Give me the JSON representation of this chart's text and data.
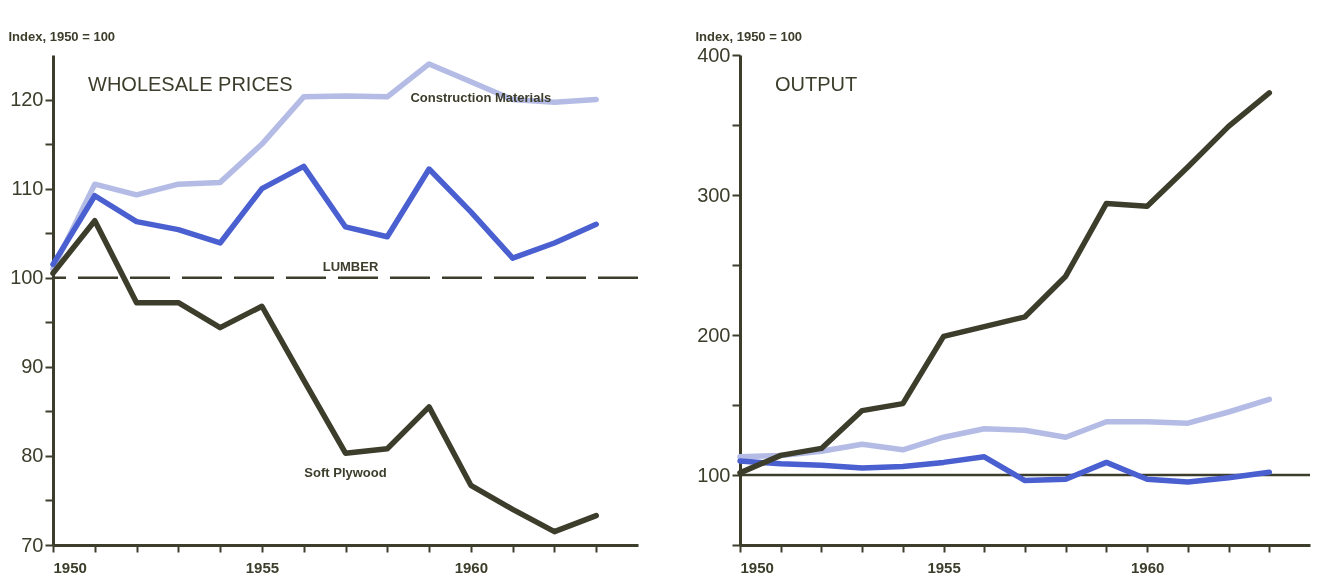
{
  "chart_data": [
    {
      "type": "line",
      "title": "WHOLESALE PRICES",
      "ylabel": "Index, 1950 = 100",
      "x": [
        1950,
        1951,
        1952,
        1953,
        1954,
        1955,
        1956,
        1957,
        1958,
        1959,
        1960,
        1961,
        1962,
        1963
      ],
      "series": [
        {
          "name": "Construction Materials",
          "color": "#b4bce6",
          "values": [
            101,
            110.5,
            109.3,
            110.5,
            110.7,
            115,
            120.3,
            120.4,
            120.3,
            124,
            122,
            120,
            119.7,
            120
          ]
        },
        {
          "name": "LUMBER",
          "color": "#4a5fd0",
          "values": [
            101.5,
            109.2,
            106.3,
            105.4,
            103.9,
            110,
            112.5,
            105.7,
            104.6,
            112.2,
            107.4,
            102.2,
            103.9,
            106
          ]
        },
        {
          "name": "Soft Plywood",
          "color": "#3d3d2c",
          "values": [
            100.5,
            106.4,
            97.2,
            97.2,
            94.4,
            96.8,
            88.5,
            80.3,
            80.8,
            85.5,
            76.7,
            74,
            71.5,
            73.3
          ]
        }
      ],
      "xlim": [
        1950,
        1964
      ],
      "ylim": [
        70,
        125
      ],
      "xticks": [
        1950,
        {
          "value": 1951,
          "label": null
        },
        {
          "value": 1952,
          "label": null
        },
        {
          "value": 1953,
          "label": null
        },
        {
          "value": 1954,
          "label": null
        },
        1955,
        {
          "value": 1956,
          "label": null
        },
        {
          "value": 1957,
          "label": null
        },
        {
          "value": 1958,
          "label": null
        },
        {
          "value": 1959,
          "label": null
        },
        1960,
        {
          "value": 1961,
          "label": null
        },
        {
          "value": 1962,
          "label": null
        },
        {
          "value": 1963,
          "label": null
        }
      ],
      "yticks": [
        70,
        {
          "value": 75,
          "label": null
        },
        80,
        {
          "value": 85,
          "label": null
        },
        90,
        {
          "value": 95,
          "label": null
        },
        100,
        {
          "value": 105,
          "label": null
        },
        110,
        {
          "value": 115,
          "label": null
        },
        120
      ],
      "ref_lines": [
        {
          "axis": "y",
          "value": 100,
          "color": "#3d3d2c",
          "line_style": "dashed"
        }
      ],
      "line_style": "solid",
      "marker": "none"
    },
    {
      "type": "line",
      "title": "OUTPUT",
      "ylabel": "Index, 1950 = 100",
      "x": [
        1950,
        1951,
        1952,
        1953,
        1954,
        1955,
        1956,
        1957,
        1958,
        1959,
        1960,
        1961,
        1962,
        1963
      ],
      "series": [
        {
          "color": "#b4bce6",
          "values": [
            113,
            114,
            117,
            122,
            118,
            127,
            133,
            132,
            127,
            138,
            138,
            137,
            145,
            154
          ]
        },
        {
          "color": "#4a5fd0",
          "values": [
            110,
            108,
            107,
            105,
            106,
            109,
            113,
            96,
            97,
            109,
            97,
            95,
            98,
            102
          ]
        },
        {
          "color": "#3d3d2c",
          "values": [
            101.5,
            114,
            119,
            146,
            151,
            199,
            206,
            213,
            242,
            294,
            292,
            320,
            349,
            373
          ]
        }
      ],
      "xlim": [
        1950,
        1964
      ],
      "ylim": [
        50,
        400
      ],
      "xticks": [
        1950,
        {
          "value": 1951,
          "label": null
        },
        {
          "value": 1952,
          "label": null
        },
        {
          "value": 1953,
          "label": null
        },
        {
          "value": 1954,
          "label": null
        },
        1955,
        {
          "value": 1956,
          "label": null
        },
        {
          "value": 1957,
          "label": null
        },
        {
          "value": 1958,
          "label": null
        },
        {
          "value": 1959,
          "label": null
        },
        1960,
        {
          "value": 1961,
          "label": null
        },
        {
          "value": 1962,
          "label": null
        },
        {
          "value": 1963,
          "label": null
        }
      ],
      "yticks": [
        {
          "value": 50,
          "label": null
        },
        100,
        {
          "value": 150,
          "label": null
        },
        200,
        {
          "value": 250,
          "label": null
        },
        300,
        {
          "value": 350,
          "label": null
        },
        400
      ],
      "ref_lines": [
        {
          "axis": "y",
          "value": 100,
          "color": "#3d3d2c"
        }
      ],
      "line_style": "solid",
      "marker": "none"
    }
  ]
}
